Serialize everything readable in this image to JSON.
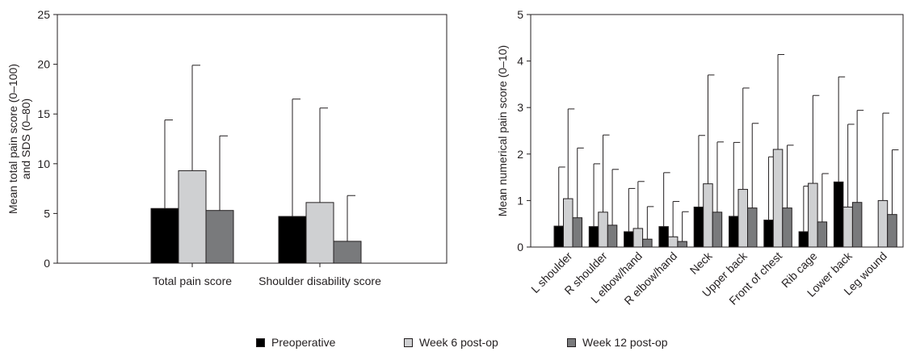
{
  "chart_data": [
    {
      "type": "bar",
      "ylabel": "Mean total pain score (0–100) and SDS (0–80)",
      "ylabel_lines": [
        "Mean total pain score (0–100)",
        "and SDS (0–80)"
      ],
      "ylim": [
        0,
        25
      ],
      "yticks": [
        "0",
        "5",
        "10",
        "15",
        "20",
        "25"
      ],
      "grid": false,
      "error_bars": "upper SD",
      "categories": [
        "Total pain score",
        "Shoulder disability score"
      ],
      "series": [
        {
          "name": "Preoperative",
          "values": [
            5.5,
            4.7
          ],
          "errors": [
            8.9,
            11.8
          ]
        },
        {
          "name": "Week 6 post-op",
          "values": [
            9.3,
            6.1
          ],
          "errors": [
            10.6,
            9.5
          ]
        },
        {
          "name": "Week 12 post-op",
          "values": [
            5.3,
            2.2
          ],
          "errors": [
            7.5,
            4.6
          ]
        }
      ]
    },
    {
      "type": "bar",
      "ylabel": "Mean numerical pain score (0–10)",
      "ylim": [
        0,
        5
      ],
      "yticks": [
        "0",
        "1",
        "2",
        "3",
        "4",
        "5"
      ],
      "grid": false,
      "error_bars": "upper SD",
      "categories": [
        "L shoulder",
        "R shoulder",
        "L elbow/hand",
        "R elbow/hand",
        "Neck",
        "Upper back",
        "Front of chest",
        "Rib cage",
        "Lower back",
        "Leg wound"
      ],
      "series": [
        {
          "name": "Preoperative",
          "values": [
            0.45,
            0.44,
            0.33,
            0.44,
            0.86,
            0.66,
            0.58,
            0.33,
            1.4,
            0
          ],
          "errors": [
            1.27,
            1.35,
            0.93,
            1.16,
            1.54,
            1.59,
            1.36,
            0.98,
            2.26,
            null
          ]
        },
        {
          "name": "Week 6 post-op",
          "values": [
            1.04,
            0.75,
            0.4,
            0.22,
            1.36,
            1.24,
            2.1,
            1.37,
            0.86,
            1.0
          ],
          "errors": [
            1.93,
            1.66,
            1.01,
            0.76,
            2.34,
            2.18,
            2.04,
            1.89,
            1.78,
            1.88
          ]
        },
        {
          "name": "Week 12 post-op",
          "values": [
            0.63,
            0.47,
            0.17,
            0.12,
            0.75,
            0.84,
            0.84,
            0.54,
            0.96,
            0.7
          ],
          "errors": [
            1.5,
            1.2,
            0.7,
            0.64,
            1.51,
            1.82,
            1.35,
            1.04,
            1.98,
            1.39
          ]
        }
      ]
    }
  ],
  "legend": {
    "position": "bottom",
    "items": [
      {
        "label": "Preoperative",
        "color": "#000000"
      },
      {
        "label": "Week 6 post-op",
        "color": "#cfd0d2"
      },
      {
        "label": "Week 12 post-op",
        "color": "#797a7c"
      }
    ]
  }
}
